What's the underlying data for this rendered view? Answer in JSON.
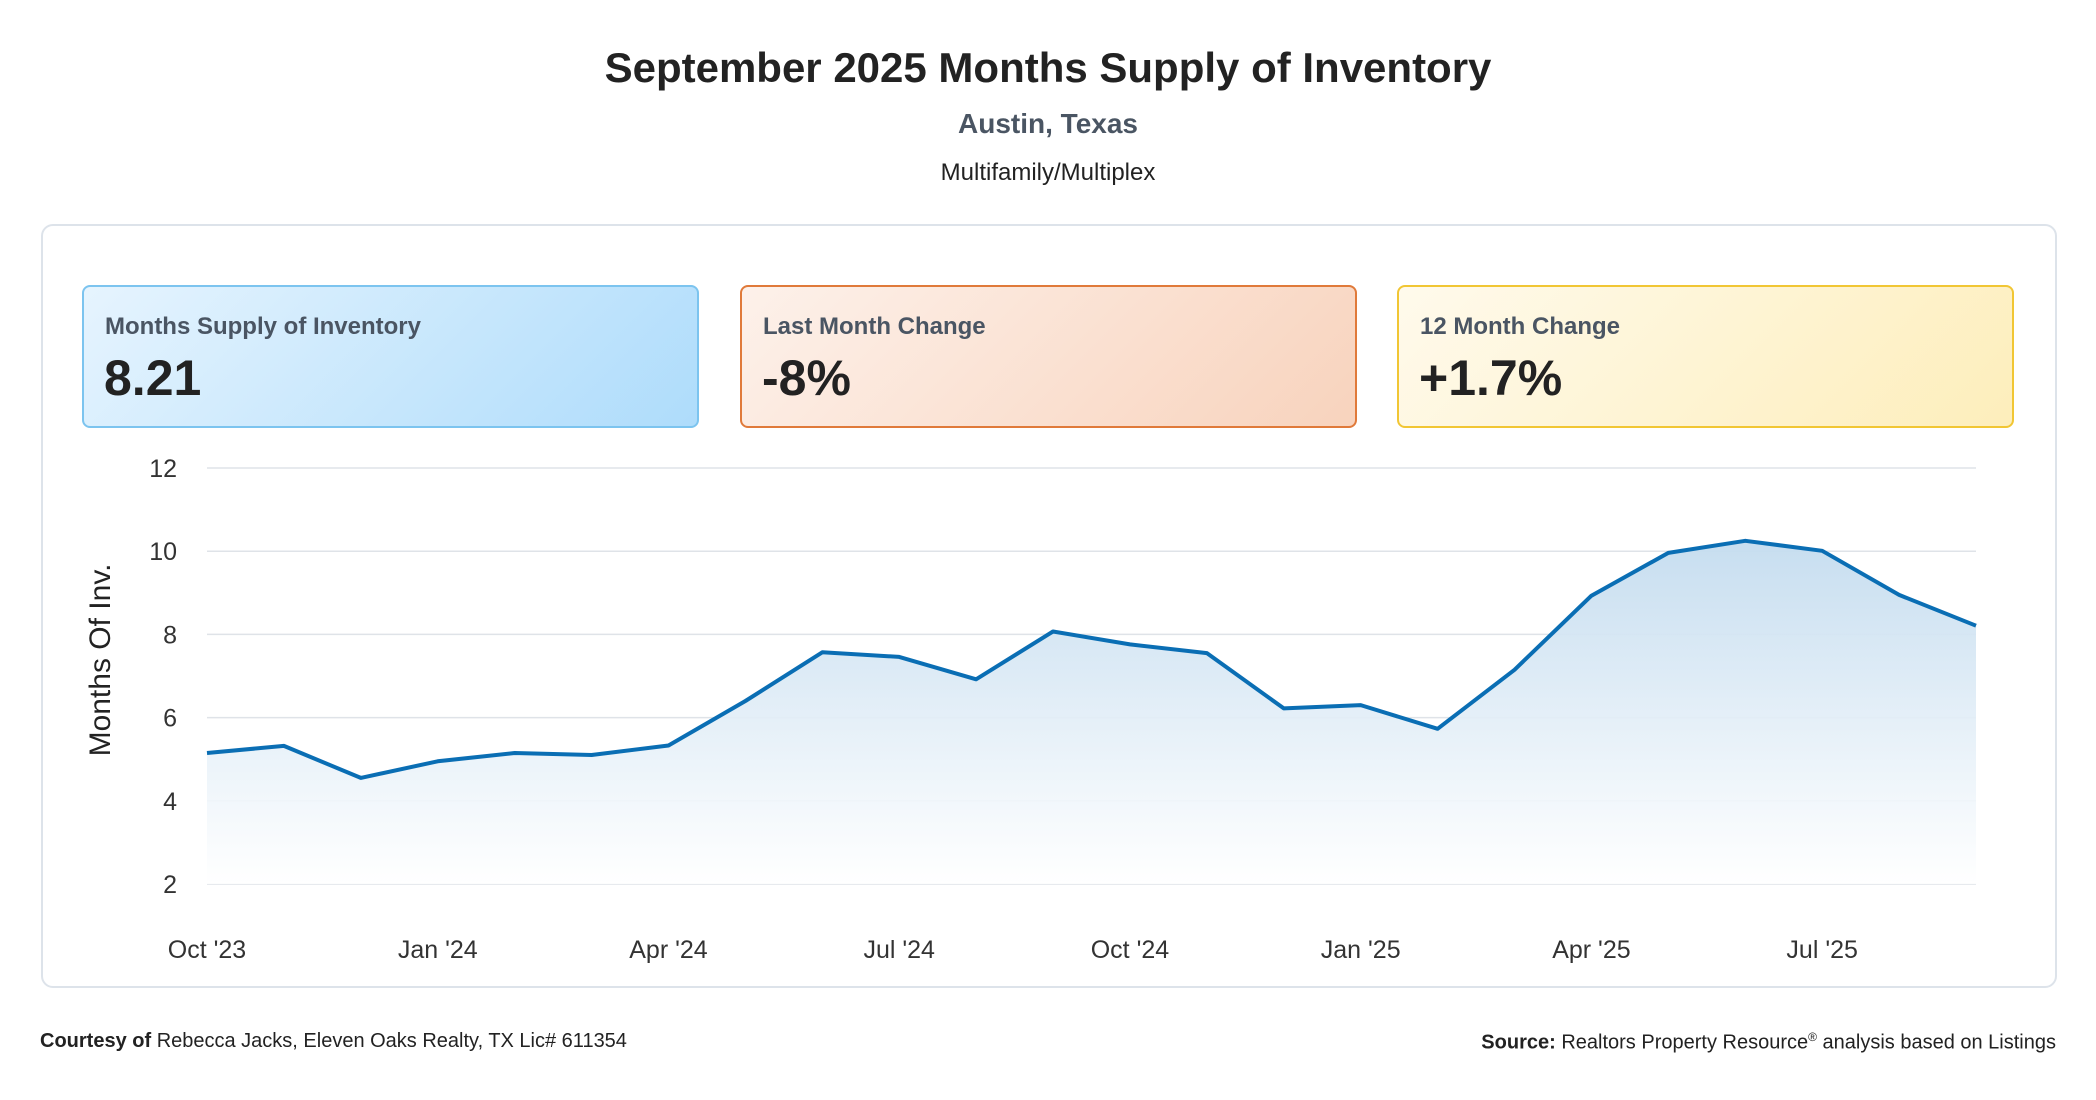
{
  "header": {
    "title": "September 2025 Months Supply of Inventory",
    "location": "Austin, Texas",
    "category": "Multifamily/Multiplex"
  },
  "cards": {
    "msi": {
      "label": "Months Supply of Inventory",
      "value": "8.21",
      "color": "#7cc4ef"
    },
    "last_month": {
      "label": "Last Month Change",
      "value": "-8%",
      "color": "#e07a3a"
    },
    "twelve_month": {
      "label": "12 Month Change",
      "value": "+1.7%",
      "color": "#f1c634"
    }
  },
  "chart_data": {
    "type": "area",
    "ylabel": "Months Of Inv.",
    "ylim": [
      2,
      12
    ],
    "yticks": [
      2,
      4,
      6,
      8,
      10,
      12
    ],
    "grid": true,
    "line_color": "#0a6eb4",
    "x": [
      "Oct '23",
      "Nov '23",
      "Dec '23",
      "Jan '24",
      "Feb '24",
      "Mar '24",
      "Apr '24",
      "May '24",
      "Jun '24",
      "Jul '24",
      "Aug '24",
      "Sep '24",
      "Oct '24",
      "Nov '24",
      "Dec '24",
      "Jan '25",
      "Feb '25",
      "Mar '25",
      "Apr '25",
      "May '25",
      "Jun '25",
      "Jul '25",
      "Aug '25",
      "Sep '25"
    ],
    "xtick_labels": [
      "Oct '23",
      "Jan '24",
      "Apr '24",
      "Jul '24",
      "Oct '24",
      "Jan '25",
      "Apr '25",
      "Jul '25"
    ],
    "series": [
      {
        "values": [
          5.15,
          5.32,
          4.55,
          4.95,
          5.15,
          5.1,
          5.33,
          6.4,
          7.57,
          7.46,
          6.92,
          8.07,
          7.76,
          7.55,
          6.22,
          6.3,
          5.73,
          7.15,
          8.93,
          9.96,
          10.25,
          10.01,
          8.95,
          8.21
        ]
      }
    ]
  },
  "footer": {
    "courtesy_label": "Courtesy of",
    "courtesy_text": "Rebecca Jacks, Eleven Oaks Realty, TX Lic# 611354",
    "source_label": "Source:",
    "source_text": "Realtors Property Resource",
    "source_mark": "®",
    "source_suffix": "analysis based on Listings"
  }
}
